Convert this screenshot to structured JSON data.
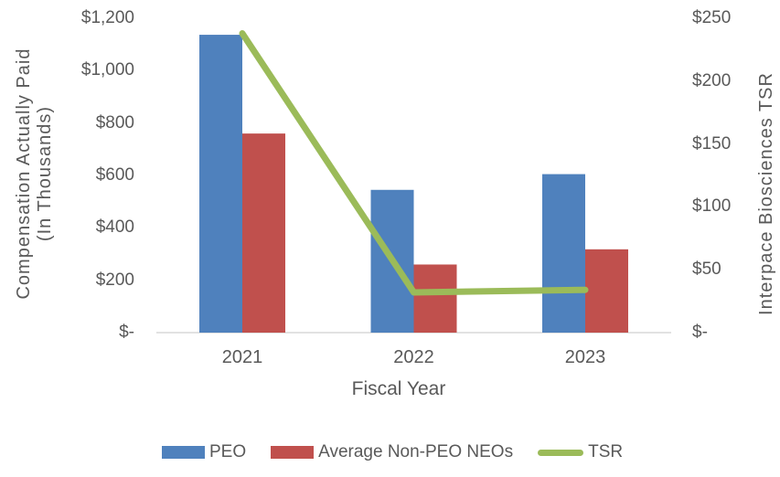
{
  "chart_data": {
    "type": "bar+line",
    "title": "",
    "categories": [
      "2021",
      "2022",
      "2023"
    ],
    "series": [
      {
        "name": "PEO",
        "type": "bar",
        "axis": "left",
        "color": "#4F81BD",
        "values": [
          1137,
          545,
          605
        ]
      },
      {
        "name": "Average Non-PEO NEOs",
        "type": "bar",
        "axis": "left",
        "color": "#C0504D",
        "values": [
          760,
          260,
          318
        ]
      },
      {
        "name": "TSR",
        "type": "line",
        "axis": "right",
        "color": "#9BBB59",
        "values": [
          238,
          32,
          34
        ]
      }
    ],
    "left_axis": {
      "title_line1": "Compensation Actually Paid",
      "title_line2": "(In Thousands)",
      "ticks": [
        "$-",
        "$200",
        "$400",
        "$600",
        "$800",
        "$1,000",
        "$1,200"
      ],
      "min": 0,
      "max": 1200,
      "step": 200
    },
    "right_axis": {
      "title": "Interpace Biosciences TSR",
      "ticks": [
        "$-",
        "$50",
        "$100",
        "$150",
        "$200",
        "$250"
      ],
      "min": 0,
      "max": 250,
      "step": 50
    },
    "x_axis": {
      "title": "Fiscal Year"
    },
    "legend": {
      "position": "bottom",
      "entries": [
        "PEO",
        "Average Non-PEO NEOs",
        "TSR"
      ]
    },
    "colors": {
      "axis_line": "#D9D9D9",
      "text": "#595959"
    },
    "layout": {
      "gridlines": false,
      "plot_background": "#FFFFFF"
    }
  }
}
